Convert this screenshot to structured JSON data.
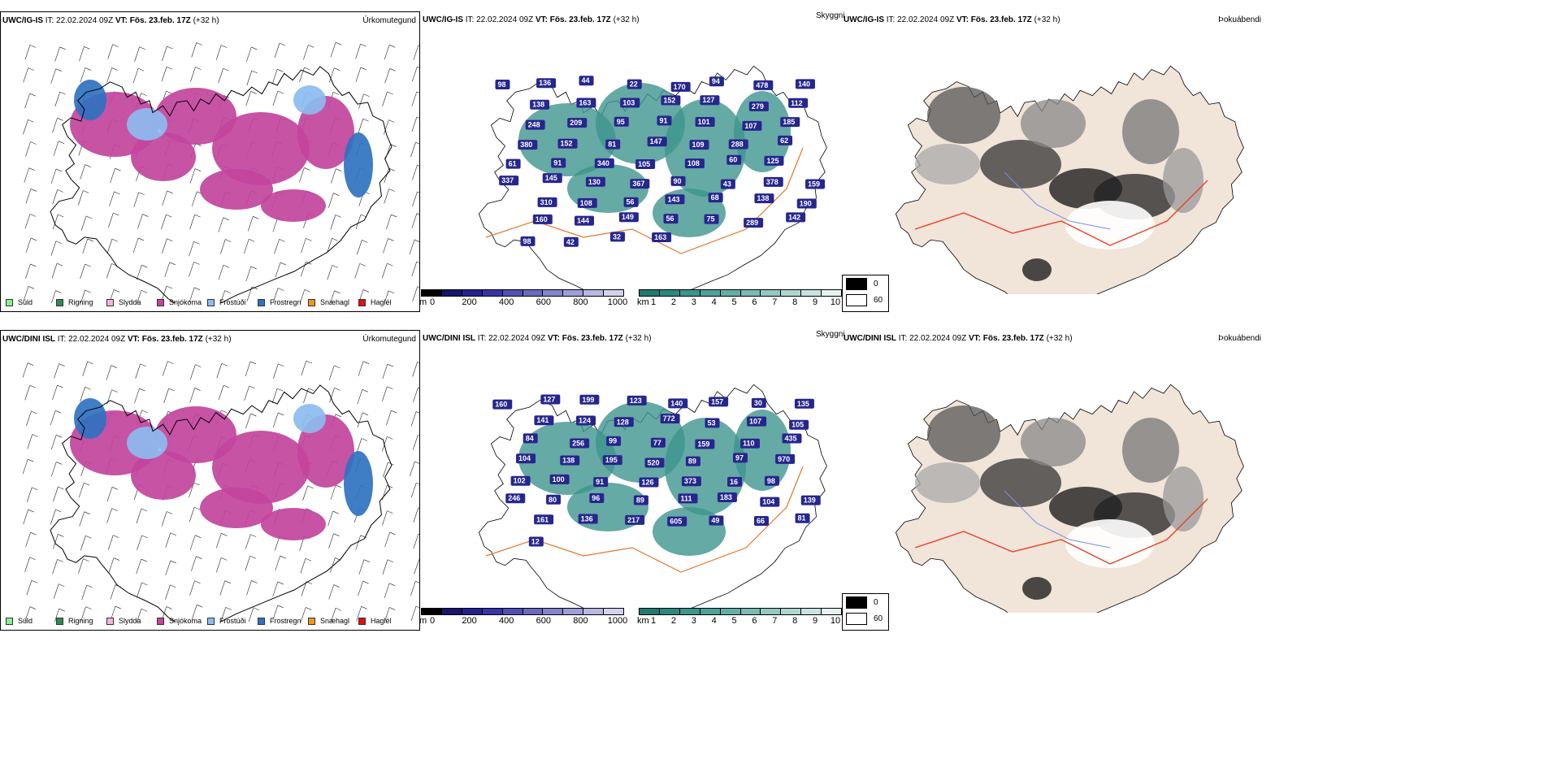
{
  "rows": [
    {
      "model": "UWC/IG-IS",
      "issue": "IT: 22.02.2024 09Z",
      "valid_label": "VT:",
      "valid": "Fös. 23.feb. 17Z",
      "lead": "(+32 h)",
      "cloud_labels": [
        "98",
        "136",
        "44",
        "22",
        "170",
        "94",
        "478",
        "140",
        "138",
        "163",
        "103",
        "152",
        "127",
        "279",
        "112",
        "248",
        "209",
        "95",
        "91",
        "101",
        "107",
        "185",
        "380",
        "152",
        "81",
        "147",
        "109",
        "288",
        "62",
        "61",
        "91",
        "340",
        "105",
        "108",
        "60",
        "125",
        "337",
        "145",
        "130",
        "367",
        "90",
        "43",
        "378",
        "159",
        "310",
        "108",
        "56",
        "143",
        "68",
        "138",
        "190",
        "160",
        "144",
        "149",
        "56",
        "75",
        "289",
        "142",
        "98",
        "42",
        "32",
        "163"
      ],
      "cloud_label_note": ""
    },
    {
      "model": "UWC/DINI ISL",
      "issue": "IT: 22.02.2024 09Z",
      "valid_label": "VT:",
      "valid": "Fös. 23.feb. 17Z",
      "lead": "(+32 h)",
      "cloud_labels": [
        "160",
        "127",
        "199",
        "123",
        "140",
        "157",
        "30",
        "135",
        "141",
        "124",
        "128",
        "772",
        "53",
        "107",
        "105",
        "84",
        "256",
        "99",
        "77",
        "159",
        "110",
        "435",
        "104",
        "138",
        "195",
        "520",
        "89",
        "97",
        "970",
        "102",
        "100",
        "91",
        "126",
        "373",
        "16",
        "98",
        "246",
        "80",
        "96",
        "89",
        "111",
        "183",
        "104",
        "139",
        "161",
        "136",
        "217",
        "605",
        "49",
        "66",
        "81",
        "12"
      ],
      "cloud_label_note": ""
    }
  ],
  "panel_types": {
    "precip_type": "Úrkomutegund",
    "cloud": "Skyggni",
    "fog": "Þokuábendi"
  },
  "precip_legend": [
    {
      "label": "Súld",
      "color": "#90ee90"
    },
    {
      "label": "Rigning",
      "color": "#2e8b57"
    },
    {
      "label": "Slydda",
      "color": "#f4b4dc"
    },
    {
      "label": "Snjókoma",
      "color": "#c2449c"
    },
    {
      "label": "Frostúði",
      "color": "#8cbcf0"
    },
    {
      "label": "Frostregn",
      "color": "#2f72c0"
    },
    {
      "label": "Snæhagl",
      "color": "#f0961e"
    },
    {
      "label": "Haglél",
      "color": "#e01010"
    }
  ],
  "ceiling_scale": {
    "unit": "m",
    "ticks": [
      "0",
      "200",
      "400",
      "600",
      "800",
      "1000"
    ],
    "colors": [
      "#000000",
      "#16166b",
      "#23238f",
      "#3535a8",
      "#5050b4",
      "#6a6ac0",
      "#8484cc",
      "#9e9ed8",
      "#b8b8e2",
      "#d2d2ee"
    ]
  },
  "visibility_scale": {
    "unit": "km",
    "ticks": [
      "1",
      "2",
      "3",
      "4",
      "5",
      "6",
      "7",
      "8",
      "9",
      "10"
    ],
    "colors": [
      "#1e7a72",
      "#2a8880",
      "#3a968e",
      "#4ea29a",
      "#64aea8",
      "#7cbab4",
      "#94c8c2",
      "#aed6d0",
      "#c8e4e0",
      "#e4f2f0"
    ]
  },
  "fog_legend": [
    {
      "value": "0",
      "color": "#000000"
    },
    {
      "value": "60",
      "color": "#ffffff"
    }
  ],
  "colors": {
    "snow": "#c2449c",
    "freezing": "#8cbcf0",
    "frostregn": "#2f72c0",
    "teal": "#3f958d",
    "navy": "#26268f",
    "road": "#e5772a",
    "landtan": "#f1e4d8",
    "fog_road": "#e8402a",
    "fog_river": "#7890e0"
  }
}
